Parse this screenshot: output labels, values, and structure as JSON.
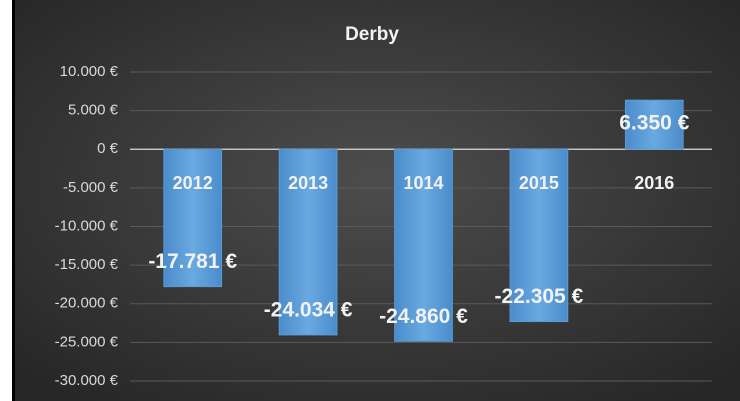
{
  "chart_data": {
    "type": "bar",
    "title": "Derby",
    "categories": [
      "2012",
      "2013",
      "1014",
      "2015",
      "2016"
    ],
    "values": [
      -17781,
      -24034,
      -24860,
      -22305,
      6350
    ],
    "value_labels": [
      "-17.781 €",
      "-24.034 €",
      "-24.860 €",
      "-22.305 €",
      "6.350 €"
    ],
    "color": "#5b9bd5",
    "ylim": [
      -30000,
      10000
    ],
    "yticks": [
      {
        "value": -30000,
        "label": "-30.000 €"
      },
      {
        "value": -25000,
        "label": "-25.000 €"
      },
      {
        "value": -20000,
        "label": "-20.000 €"
      },
      {
        "value": -15000,
        "label": "-15.000 €"
      },
      {
        "value": -10000,
        "label": "-10.000 €"
      },
      {
        "value": -5000,
        "label": "-5.000 €"
      },
      {
        "value": 0,
        "label": "0 €"
      },
      {
        "value": 5000,
        "label": "5.000 €"
      },
      {
        "value": 10000,
        "label": "10.000 €"
      }
    ],
    "grid": true
  }
}
